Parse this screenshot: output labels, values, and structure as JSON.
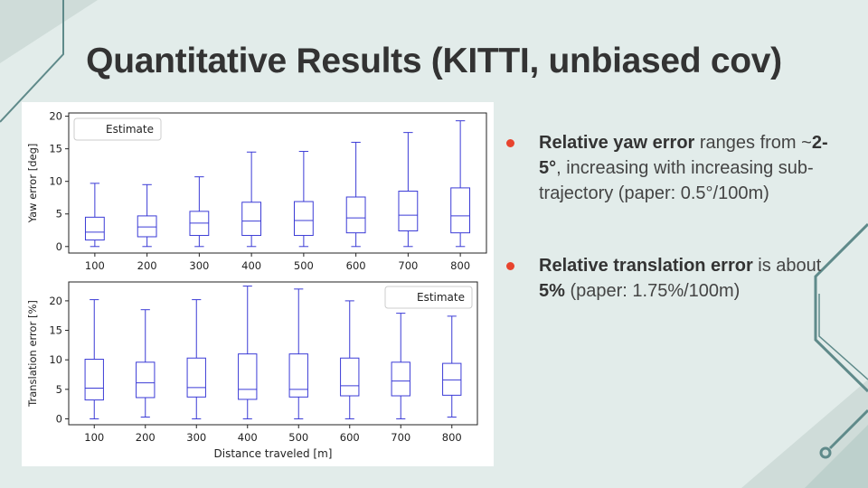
{
  "slide": {
    "title": "Quantitative Results (KITTI, unbiased cov)"
  },
  "bullets": [
    {
      "b1": "Relative yaw error",
      "t1": " ranges from ~",
      "b2": "2-5°",
      "t2": ", increasing with increasing sub-trajectory (paper: 0.5°/100m)"
    },
    {
      "b1": "Relative translation error",
      "t1": " is about ",
      "b2": "5%",
      "t2": " (paper: 1.75%/100m)"
    }
  ],
  "colors": {
    "box": "#3b3bd6",
    "accent_bullet": "#e8442e",
    "background": "#e2ecea",
    "decoration": "#5f8a8a"
  },
  "chart_data": [
    {
      "type": "box",
      "legend": "Estimate",
      "legend_position": "top-left",
      "xlabel": "",
      "ylabel": "Yaw error [deg]",
      "categories": [
        "100",
        "200",
        "300",
        "400",
        "500",
        "600",
        "700",
        "800"
      ],
      "ylim": [
        -1,
        20.5
      ],
      "yticks": [
        0,
        5,
        10,
        15,
        20
      ],
      "boxes": [
        {
          "min": 0,
          "q1": 1.0,
          "median": 2.2,
          "q3": 4.5,
          "max": 9.7
        },
        {
          "min": 0,
          "q1": 1.5,
          "median": 3.0,
          "q3": 4.7,
          "max": 9.5
        },
        {
          "min": 0,
          "q1": 1.7,
          "median": 3.6,
          "q3": 5.4,
          "max": 10.7
        },
        {
          "min": 0,
          "q1": 1.7,
          "median": 3.9,
          "q3": 6.8,
          "max": 14.5
        },
        {
          "min": 0,
          "q1": 1.7,
          "median": 4.0,
          "q3": 6.9,
          "max": 14.6
        },
        {
          "min": 0,
          "q1": 2.1,
          "median": 4.4,
          "q3": 7.6,
          "max": 16.0
        },
        {
          "min": 0,
          "q1": 2.4,
          "median": 4.8,
          "q3": 8.5,
          "max": 17.5
        },
        {
          "min": 0,
          "q1": 2.1,
          "median": 4.7,
          "q3": 9.0,
          "max": 19.3
        }
      ]
    },
    {
      "type": "box",
      "legend": "Estimate",
      "legend_position": "top-right",
      "xlabel": "Distance traveled [m]",
      "ylabel": "Translation error [%]",
      "categories": [
        "100",
        "200",
        "300",
        "400",
        "500",
        "600",
        "700",
        "800"
      ],
      "ylim": [
        -1,
        23.2
      ],
      "yticks": [
        0,
        5,
        10,
        15,
        20
      ],
      "boxes": [
        {
          "min": 0,
          "q1": 3.2,
          "median": 5.2,
          "q3": 10.1,
          "max": 20.2
        },
        {
          "min": 0.3,
          "q1": 3.6,
          "median": 6.1,
          "q3": 9.6,
          "max": 18.5
        },
        {
          "min": 0,
          "q1": 3.7,
          "median": 5.3,
          "q3": 10.3,
          "max": 20.2
        },
        {
          "min": 0,
          "q1": 3.3,
          "median": 5.0,
          "q3": 11.0,
          "max": 22.5
        },
        {
          "min": 0,
          "q1": 3.7,
          "median": 5.0,
          "q3": 11.0,
          "max": 22.0
        },
        {
          "min": 0,
          "q1": 3.9,
          "median": 5.6,
          "q3": 10.3,
          "max": 20.0
        },
        {
          "min": 0,
          "q1": 3.9,
          "median": 6.4,
          "q3": 9.6,
          "max": 17.9
        },
        {
          "min": 0.3,
          "q1": 4.0,
          "median": 6.6,
          "q3": 9.4,
          "max": 17.4
        }
      ]
    }
  ]
}
